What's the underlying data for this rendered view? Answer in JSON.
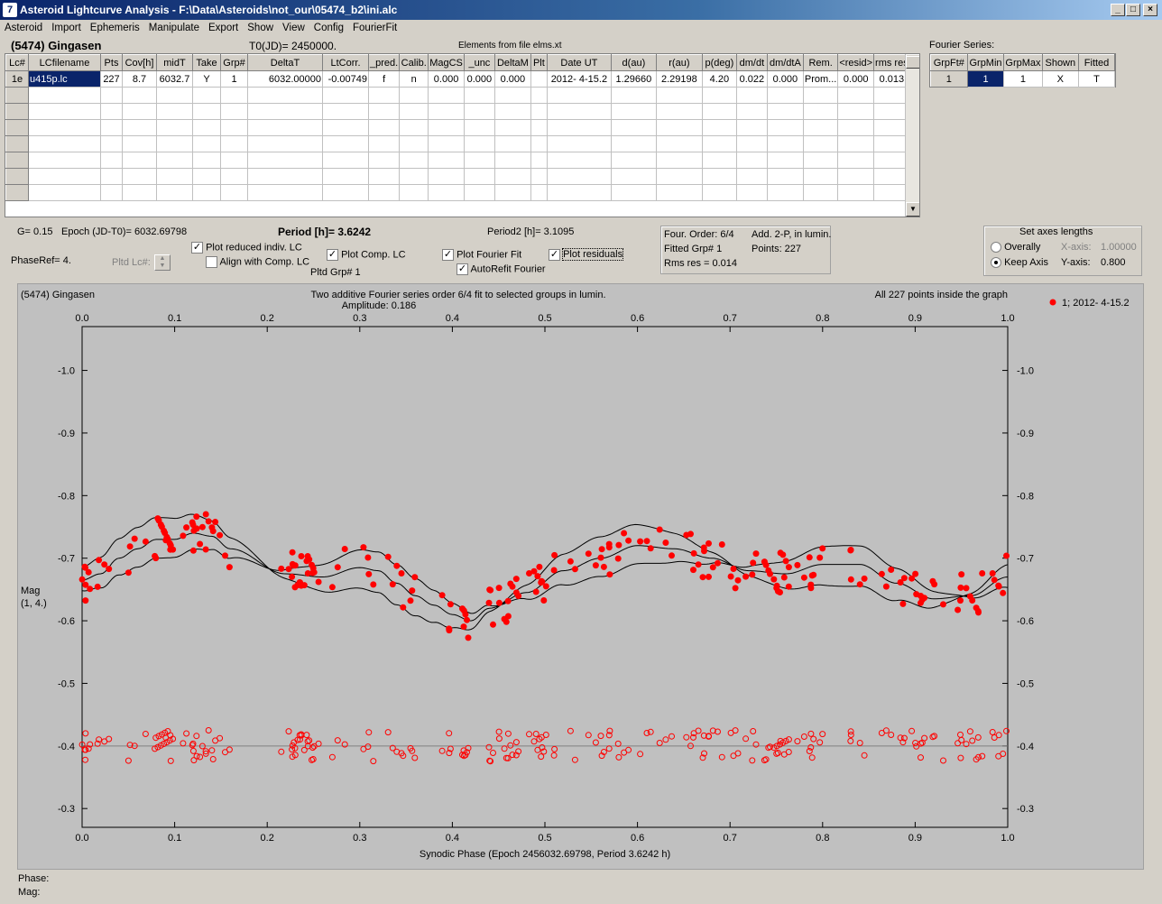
{
  "window": {
    "title": "Asteroid Lightcurve Analysis - F:\\Data\\Asteroids\\not_our\\05474_b2\\ini.alc",
    "icon": "7"
  },
  "menu": [
    "Asteroid",
    "Import",
    "Ephemeris",
    "Manipulate",
    "Export",
    "Show",
    "View",
    "Config",
    "FourierFit"
  ],
  "header": {
    "asteroid": "(5474) Gingasen",
    "t0": "T0(JD)= 2450000.",
    "elements": "Elements from file elms.xt"
  },
  "table": {
    "columns": [
      "Lc#",
      "LCfilename",
      "Pts",
      "Cov[h]",
      "midT",
      "Take",
      "Grp#",
      "DeltaT",
      "LtCorr.",
      "_pred.",
      "Calib.",
      "MagCS",
      "_unc",
      "DeltaM",
      "Plt",
      "Date UT",
      "d(au)",
      "r(au)",
      "p(deg)",
      "dm/dt",
      "dm/dtA",
      "Rem.",
      "<resid>",
      "rms res"
    ],
    "rows": [
      [
        "1e",
        "u415p.lc",
        "227",
        "8.7",
        "6032.7",
        "Y",
        "1",
        "6032.00000",
        "-0.00749",
        "f",
        "n",
        "0.000",
        "0.000",
        "0.000",
        "",
        "2012- 4-15.2",
        "1.29660",
        "2.29198",
        "4.20",
        "0.022",
        "0.000",
        "Prom...",
        "0.000",
        "0.013"
      ]
    ]
  },
  "fourier": {
    "label": "Fourier Series:",
    "columns": [
      "GrpFt#",
      "GrpMin",
      "GrpMax",
      "Shown",
      "Fitted"
    ],
    "row": [
      "1",
      "1",
      "1",
      "X",
      "T"
    ]
  },
  "info": {
    "g": "G= 0.15",
    "epoch": "Epoch (JD-T0)= 6032.69798",
    "period": "Period [h]= 3.6242",
    "period2": "Period2 [h]= 3.1095",
    "phaseref": "PhaseRef= 4.",
    "pltdlc": "Pltd Lc#:",
    "pltdgrp": "Pltd Grp#  1"
  },
  "checks": {
    "reduced": "Plot reduced indiv. LC",
    "align": "Align with Comp. LC",
    "comp": "Plot Comp. LC",
    "fourierfit": "Plot Fourier Fit",
    "residuals": "Plot residuals",
    "autorefit": "AutoRefit Fourier"
  },
  "stats": {
    "order": "Four. Order:  6/4",
    "add": "Add. 2-P, in lumin.",
    "fitted": "Fitted Grp# 1",
    "points": "Points: 227",
    "rms": "Rms res     = 0.014"
  },
  "axes": {
    "title": "Set axes lengths",
    "overally": "Overally",
    "keep": "Keep Axis",
    "xaxis_label": "X-axis:",
    "xaxis_value": "1.00000",
    "yaxis_label": "Y-axis:",
    "yaxis_value": "0.800"
  },
  "plot": {
    "top_left": "(5474) Gingasen",
    "title1": "Two additive Fourier series order 6/4 fit to selected groups in lumin.",
    "title2": "Amplitude: 0.186",
    "top_right": "All 227 points inside the graph",
    "legend": "1; 2012- 4-15.2",
    "ylabel1": "Mag",
    "ylabel2": "(1, 4.)",
    "xlabel": "Synodic Phase (Epoch 2456032.69798, Period 3.6242 h)"
  },
  "status": {
    "phase": "Phase:",
    "mag": "Mag:"
  },
  "chart_data": {
    "type": "scatter",
    "xlabel": "Synodic Phase (Epoch 2456032.69798, Period 3.6242 h)",
    "ylabel": "Mag (1, 4.)",
    "xlim": [
      0,
      1
    ],
    "ylim": [
      -1.07,
      -0.27
    ],
    "y_inverted": true,
    "xticks": [
      0,
      0.1,
      0.2,
      0.3,
      0.4,
      0.5,
      0.6,
      0.7,
      0.8,
      0.9,
      1.0
    ],
    "yticks": [
      -1.0,
      -0.9,
      -0.8,
      -0.7,
      -0.6,
      -0.5,
      -0.4,
      -0.3
    ],
    "points_count": 227,
    "series": [
      {
        "name": "1; 2012- 4-15.2",
        "kind": "lightcurve",
        "color": "#ff0000",
        "x": [
          0.0,
          0.02,
          0.04,
          0.06,
          0.08,
          0.1,
          0.12,
          0.14,
          0.16,
          0.22,
          0.26,
          0.3,
          0.32,
          0.34,
          0.36,
          0.38,
          0.4,
          0.42,
          0.44,
          0.48,
          0.52,
          0.56,
          0.6,
          0.64,
          0.68,
          0.72,
          0.76,
          0.8,
          0.84,
          0.88,
          0.92,
          0.96,
          1.0
        ],
        "y": [
          -0.665,
          -0.675,
          -0.7,
          -0.715,
          -0.73,
          -0.73,
          -0.74,
          -0.735,
          -0.715,
          -0.675,
          -0.67,
          -0.685,
          -0.68,
          -0.66,
          -0.64,
          -0.625,
          -0.61,
          -0.6,
          -0.62,
          -0.645,
          -0.68,
          -0.7,
          -0.72,
          -0.715,
          -0.7,
          -0.68,
          -0.675,
          -0.69,
          -0.69,
          -0.66,
          -0.635,
          -0.64,
          -0.67
        ]
      },
      {
        "name": "residuals",
        "kind": "residuals",
        "color": "#ff0000",
        "x": [
          0.0,
          0.1,
          0.2,
          0.3,
          0.4,
          0.5,
          0.6,
          0.7,
          0.8,
          0.9,
          1.0
        ],
        "y": [
          -0.4,
          -0.4,
          -0.4,
          -0.4,
          -0.4,
          -0.4,
          -0.4,
          -0.4,
          -0.4,
          -0.4,
          -0.4
        ]
      }
    ]
  }
}
